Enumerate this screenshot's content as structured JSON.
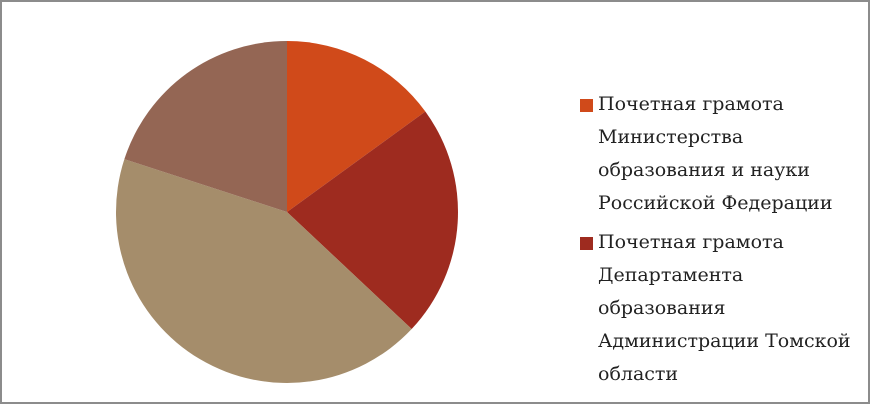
{
  "chart_data": {
    "type": "pie",
    "categories": [
      "Почетная грамота Министерства образования и науки Российской Федерации",
      "Почетная грамота Департамента образования Администрации Томской области",
      null,
      null
    ],
    "values": [
      15,
      22,
      43,
      20
    ],
    "colors": [
      "#d04a1a",
      "#9e2b1f",
      "#a58d6b",
      "#946654"
    ]
  }
}
